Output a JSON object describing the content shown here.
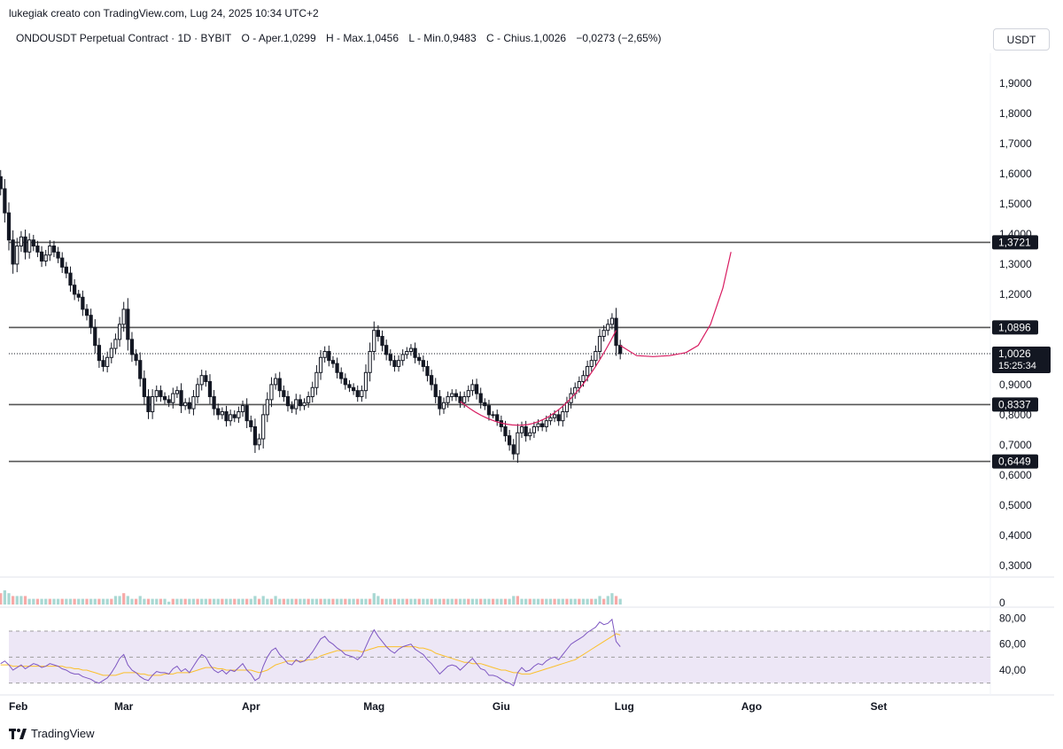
{
  "header": {
    "credit": "lukegiak creato con TradingView.com, Lug 24, 2025 10:34 UTC+2",
    "symbol": "ONDOUSDT Perpetual Contract · 1D · BYBIT",
    "open_label": "O",
    "open_value": "Aper.1,0299",
    "high_label": "H",
    "high_value": "Max.1,0456",
    "low_label": "L",
    "low_value": "Min.0,9483",
    "close_label": "C",
    "close_value": "Chius.1,0026",
    "change": "−0,0273 (−2,65%)",
    "currency": "USDT"
  },
  "footer": {
    "logo_text": "TradingView",
    "logo_icon": "tradingview-logo-icon"
  },
  "colors": {
    "up": "#26a69a",
    "down": "#ef5350",
    "candle": "#131722",
    "curve": "#d81b60",
    "rsi": "#7e57c2",
    "rsi_ma": "#fbc02d",
    "rsi_band": "#ede7f6",
    "hline": "#555555"
  },
  "chart_data": {
    "type": "candlestick",
    "y_axis_ticks": [
      "1,9000",
      "1,8000",
      "1,7000",
      "1,6000",
      "1,5000",
      "1,4000",
      "1,3000",
      "1,2000",
      "0,9000",
      "0,8000",
      "0,7000",
      "0,6000",
      "0,5000",
      "0,4000",
      "0,3000"
    ],
    "ylim": [
      0.27,
      2.0
    ],
    "x_axis_ticks": [
      "Feb",
      "Mar",
      "Apr",
      "Mag",
      "Giu",
      "Lug",
      "Ago",
      "Set"
    ],
    "x_dates": [
      "2025-02-01",
      "2025-03-01",
      "2025-04-01",
      "2025-05-01",
      "2025-06-01",
      "2025-07-01",
      "2025-08-01",
      "2025-09-01"
    ],
    "horizontal_levels": [
      {
        "value": 1.3721,
        "label": "1,3721"
      },
      {
        "value": 1.0896,
        "label": "1,0896"
      },
      {
        "value": 0.8337,
        "label": "0,8337"
      },
      {
        "value": 0.6449,
        "label": "0,6449"
      }
    ],
    "last_price": {
      "value": 1.0026,
      "label": "1,0026",
      "countdown": "15:25:34"
    },
    "volume_axis_label": "0",
    "rsi": {
      "ticks": [
        "80,00",
        "60,00",
        "40,00"
      ],
      "upper": 70,
      "middle": 50,
      "lower": 30,
      "ylim": [
        25,
        85
      ]
    },
    "price_closes": [
      1.55,
      1.47,
      1.38,
      1.3,
      1.36,
      1.39,
      1.34,
      1.38,
      1.36,
      1.34,
      1.31,
      1.33,
      1.36,
      1.34,
      1.32,
      1.29,
      1.27,
      1.23,
      1.2,
      1.19,
      1.15,
      1.13,
      1.09,
      1.03,
      0.98,
      0.96,
      0.99,
      1.02,
      1.05,
      1.1,
      1.15,
      1.05,
      1.0,
      0.98,
      0.92,
      0.86,
      0.81,
      0.86,
      0.88,
      0.86,
      0.85,
      0.84,
      0.87,
      0.88,
      0.83,
      0.84,
      0.82,
      0.86,
      0.9,
      0.93,
      0.91,
      0.86,
      0.82,
      0.8,
      0.81,
      0.78,
      0.8,
      0.79,
      0.81,
      0.83,
      0.78,
      0.76,
      0.7,
      0.72,
      0.8,
      0.85,
      0.9,
      0.92,
      0.88,
      0.86,
      0.83,
      0.82,
      0.85,
      0.83,
      0.84,
      0.86,
      0.89,
      0.94,
      0.99,
      1.01,
      0.98,
      0.97,
      0.94,
      0.92,
      0.9,
      0.89,
      0.88,
      0.86,
      0.88,
      0.94,
      1.01,
      1.08,
      1.06,
      1.03,
      1.0,
      0.98,
      0.96,
      0.98,
      1.0,
      1.01,
      1.02,
      0.99,
      0.98,
      0.96,
      0.93,
      0.9,
      0.86,
      0.82,
      0.84,
      0.86,
      0.87,
      0.86,
      0.84,
      0.86,
      0.88,
      0.9,
      0.87,
      0.84,
      0.83,
      0.8,
      0.8,
      0.78,
      0.76,
      0.73,
      0.7,
      0.67,
      0.74,
      0.76,
      0.73,
      0.74,
      0.76,
      0.77,
      0.76,
      0.78,
      0.79,
      0.8,
      0.78,
      0.81,
      0.84,
      0.87,
      0.89,
      0.91,
      0.93,
      0.96,
      0.98,
      1.01,
      1.06,
      1.08,
      1.1,
      1.12,
      1.03,
      1.0026
    ],
    "rsi_values": [
      45,
      47,
      44,
      40,
      42,
      44,
      41,
      43,
      45,
      44,
      42,
      43,
      45,
      44,
      43,
      41,
      40,
      38,
      37,
      37,
      35,
      34,
      33,
      31,
      30,
      32,
      34,
      38,
      43,
      49,
      52,
      44,
      40,
      38,
      35,
      33,
      32,
      36,
      39,
      38,
      38,
      37,
      41,
      43,
      39,
      41,
      38,
      43,
      48,
      52,
      50,
      44,
      40,
      38,
      40,
      37,
      40,
      39,
      42,
      45,
      40,
      37,
      32,
      34,
      43,
      50,
      55,
      57,
      52,
      49,
      45,
      44,
      48,
      46,
      47,
      50,
      54,
      59,
      64,
      66,
      62,
      60,
      57,
      55,
      52,
      51,
      50,
      48,
      51,
      58,
      65,
      71,
      66,
      62,
      58,
      55,
      53,
      56,
      58,
      59,
      60,
      56,
      54,
      52,
      48,
      45,
      41,
      37,
      40,
      43,
      44,
      43,
      40,
      43,
      46,
      49,
      45,
      41,
      40,
      36,
      36,
      35,
      33,
      31,
      30,
      28,
      38,
      42,
      39,
      40,
      43,
      45,
      44,
      47,
      49,
      50,
      48,
      52,
      56,
      60,
      62,
      64,
      66,
      69,
      71,
      73,
      77,
      75,
      76,
      79,
      62,
      58
    ],
    "rsi_ma_values": [
      44,
      44,
      44,
      43,
      43,
      43,
      43,
      43,
      43,
      43,
      43,
      43,
      43,
      43,
      43,
      43,
      42,
      42,
      41,
      41,
      40,
      40,
      39,
      38,
      37,
      36,
      36,
      36,
      36,
      37,
      38,
      38,
      38,
      38,
      37,
      37,
      36,
      36,
      36,
      36,
      37,
      37,
      37,
      38,
      38,
      38,
      38,
      39,
      40,
      41,
      42,
      42,
      42,
      41,
      41,
      40,
      40,
      40,
      40,
      40,
      40,
      40,
      39,
      38,
      39,
      40,
      42,
      44,
      45,
      46,
      47,
      47,
      47,
      47,
      47,
      48,
      48,
      49,
      51,
      52,
      53,
      54,
      55,
      55,
      55,
      55,
      55,
      55,
      54,
      55,
      56,
      57,
      58,
      58,
      58,
      58,
      58,
      58,
      58,
      58,
      58,
      58,
      57,
      57,
      56,
      55,
      53,
      52,
      51,
      50,
      49,
      48,
      47,
      46,
      46,
      45,
      45,
      45,
      44,
      43,
      42,
      41,
      40,
      40,
      39,
      38,
      38,
      37,
      37,
      37,
      38,
      39,
      40,
      41,
      42,
      43,
      44,
      45,
      46,
      47,
      48,
      50,
      52,
      54,
      56,
      58,
      60,
      62,
      64,
      66,
      68,
      67
    ],
    "volume_values": [
      4,
      5,
      4,
      3,
      3,
      3,
      3,
      2,
      2,
      2,
      2,
      2,
      2,
      2,
      2,
      2,
      2,
      2,
      2,
      2,
      2,
      2,
      2,
      2,
      2,
      2,
      2,
      2,
      3,
      3,
      4,
      3,
      2,
      2,
      3,
      2,
      2,
      2,
      2,
      2,
      2,
      1,
      2,
      2,
      2,
      2,
      2,
      2,
      2,
      2,
      2,
      2,
      2,
      2,
      2,
      2,
      2,
      2,
      2,
      2,
      2,
      2,
      3,
      2,
      3,
      2,
      2,
      3,
      2,
      2,
      2,
      2,
      2,
      2,
      2,
      2,
      2,
      2,
      2,
      2,
      2,
      2,
      2,
      2,
      2,
      2,
      2,
      2,
      2,
      2,
      2,
      4,
      3,
      2,
      2,
      2,
      2,
      2,
      2,
      2,
      2,
      2,
      2,
      2,
      2,
      2,
      2,
      2,
      2,
      2,
      2,
      2,
      2,
      2,
      2,
      2,
      2,
      2,
      2,
      2,
      2,
      2,
      2,
      2,
      2,
      3,
      3,
      2,
      2,
      2,
      2,
      2,
      2,
      2,
      2,
      2,
      2,
      2,
      2,
      2,
      2,
      2,
      2,
      2,
      2,
      2,
      3,
      2,
      3,
      4,
      3,
      2
    ],
    "projection_curve": [
      [
        1.03,
        0
      ],
      [
        0.996,
        4
      ],
      [
        0.993,
        8
      ],
      [
        0.996,
        12
      ],
      [
        1.006,
        16
      ],
      [
        1.03,
        19
      ],
      [
        1.1,
        22
      ],
      [
        1.22,
        25
      ],
      [
        1.34,
        27
      ]
    ]
  }
}
